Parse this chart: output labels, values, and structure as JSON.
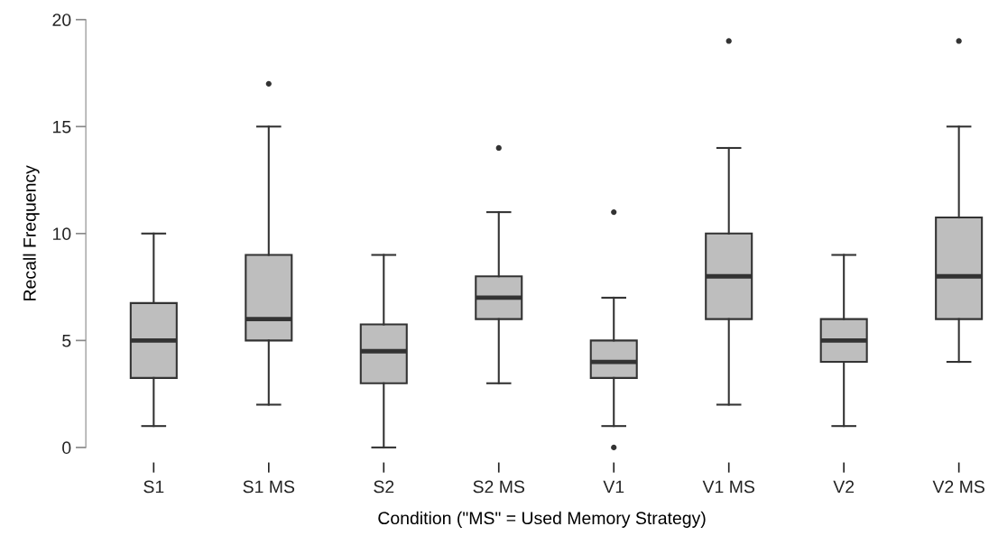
{
  "chart_data": {
    "type": "box",
    "xlabel": "Condition (\"MS\" = Used Memory Strategy)",
    "ylabel": "Recall Frequency",
    "categories": [
      "S1",
      "S1 MS",
      "S2",
      "S2 MS",
      "V1",
      "V1 MS",
      "V2",
      "V2 MS"
    ],
    "boxes": [
      {
        "low": 1,
        "q1": 3.25,
        "median": 5,
        "q3": 6.75,
        "high": 10
      },
      {
        "low": 2,
        "q1": 5,
        "median": 6,
        "q3": 9,
        "high": 15,
        "outliers": [
          17
        ]
      },
      {
        "low": 0,
        "q1": 3,
        "median": 4.5,
        "q3": 5.75,
        "high": 9
      },
      {
        "low": 3,
        "q1": 6,
        "median": 7,
        "q3": 8,
        "high": 11,
        "outliers": [
          14
        ]
      },
      {
        "low": 1,
        "q1": 3.25,
        "median": 4,
        "q3": 5,
        "high": 7,
        "outliers": [
          11,
          0
        ]
      },
      {
        "low": 2,
        "q1": 6,
        "median": 8,
        "q3": 10,
        "high": 14,
        "outliers": [
          19
        ]
      },
      {
        "low": 1,
        "q1": 4,
        "median": 5,
        "q3": 6,
        "high": 9
      },
      {
        "low": 4,
        "q1": 6,
        "median": 8,
        "q3": 10.75,
        "high": 15,
        "outliers": [
          19
        ]
      }
    ],
    "color": "#bebebe",
    "ylim": [
      0,
      20
    ],
    "yticks": [
      0,
      5,
      10,
      15,
      20
    ],
    "grid": false
  }
}
